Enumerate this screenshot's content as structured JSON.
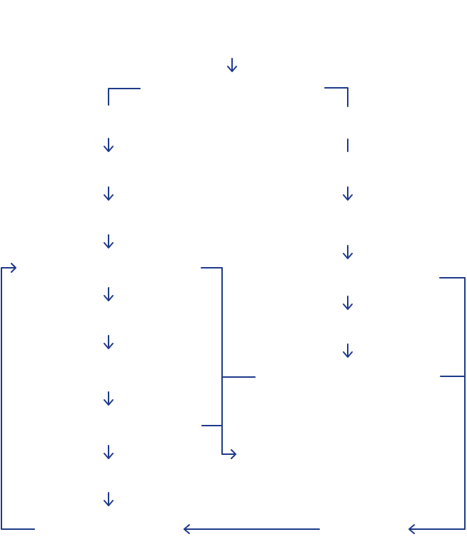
{
  "diagram": {
    "line_color": "#1f3a8a",
    "background": "#ffffff",
    "note": ""
  }
}
